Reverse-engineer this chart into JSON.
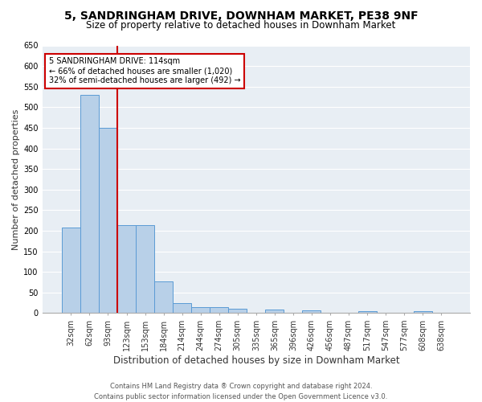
{
  "title": "5, SANDRINGHAM DRIVE, DOWNHAM MARKET, PE38 9NF",
  "subtitle": "Size of property relative to detached houses in Downham Market",
  "xlabel": "Distribution of detached houses by size in Downham Market",
  "ylabel": "Number of detached properties",
  "footer_line1": "Contains HM Land Registry data ® Crown copyright and database right 2024.",
  "footer_line2": "Contains public sector information licensed under the Open Government Licence v3.0.",
  "bar_labels": [
    "32sqm",
    "62sqm",
    "93sqm",
    "123sqm",
    "153sqm",
    "184sqm",
    "214sqm",
    "244sqm",
    "274sqm",
    "305sqm",
    "335sqm",
    "365sqm",
    "396sqm",
    "426sqm",
    "456sqm",
    "487sqm",
    "517sqm",
    "547sqm",
    "577sqm",
    "608sqm",
    "638sqm"
  ],
  "bar_values": [
    207,
    530,
    450,
    213,
    213,
    77,
    25,
    15,
    15,
    11,
    0,
    8,
    0,
    7,
    0,
    0,
    5,
    0,
    0,
    5,
    0
  ],
  "bar_color": "#b8d0e8",
  "bar_edge_color": "#5b9bd5",
  "background_color": "#e8eef4",
  "grid_color": "#ffffff",
  "vline_x": 2.5,
  "vline_color": "#cc0000",
  "annotation_line1": "5 SANDRINGHAM DRIVE: 114sqm",
  "annotation_line2": "← 66% of detached houses are smaller (1,020)",
  "annotation_line3": "32% of semi-detached houses are larger (492) →",
  "annotation_box_color": "#ffffff",
  "annotation_box_edge": "#cc0000",
  "ylim": [
    0,
    650
  ],
  "yticks": [
    0,
    50,
    100,
    150,
    200,
    250,
    300,
    350,
    400,
    450,
    500,
    550,
    600,
    650
  ],
  "title_fontsize": 10,
  "subtitle_fontsize": 8.5,
  "xlabel_fontsize": 8.5,
  "ylabel_fontsize": 8,
  "tick_fontsize": 7,
  "annotation_fontsize": 7,
  "footer_fontsize": 6
}
